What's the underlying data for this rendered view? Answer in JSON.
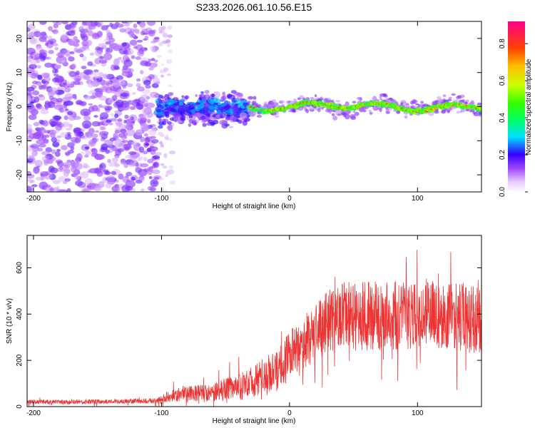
{
  "title": "S233.2026.061.10.56.E15",
  "chart_data": [
    {
      "type": "heatmap",
      "xlabel": "Height of straight line (km)",
      "ylabel": "Frequency (Hz)",
      "xlim": [
        -205,
        150
      ],
      "ylim": [
        -25,
        25
      ],
      "xticks": [
        -200,
        -100,
        0,
        100
      ],
      "yticks": [
        -20,
        -10,
        0,
        10,
        20
      ],
      "colorbar": {
        "label": "Normalized spectral amplitude",
        "range": [
          0,
          0.92
        ],
        "ticks": [
          "0.0",
          "0.2",
          "0.4",
          "0.6",
          "0.8"
        ],
        "tick_values": [
          0,
          0.2,
          0.4,
          0.6,
          0.8
        ]
      },
      "regions": [
        {
          "name": "noise",
          "x": [
            -205,
            -103
          ],
          "freq": [
            -25,
            25
          ],
          "amplitude": "0.05-0.15"
        },
        {
          "name": "scatter",
          "x": [
            -103,
            -32
          ],
          "freq": [
            -12,
            8
          ],
          "amplitude": "0.05-0.35"
        },
        {
          "name": "signal-ridge",
          "x": [
            -32,
            150
          ],
          "freq_center": 0,
          "amplitude": "0.25-0.9"
        }
      ]
    },
    {
      "type": "line",
      "xlabel": "Height of straight line (km)",
      "ylabel": "SNR (10 * v/v)",
      "xlim": [
        -205,
        150
      ],
      "ylim": [
        0,
        740
      ],
      "xticks": [
        -200,
        -100,
        0,
        100
      ],
      "yticks": [
        0,
        200,
        400,
        600
      ],
      "series": [
        {
          "name": "SNR",
          "color": "#ee3333",
          "envelope_x": [
            -205,
            -130,
            -103,
            -95,
            -80,
            -60,
            -50,
            -40,
            -30,
            -20,
            -10,
            0,
            10,
            20,
            30,
            40,
            60,
            80,
            100,
            120,
            140,
            150
          ],
          "envelope_mean": [
            20,
            22,
            25,
            45,
            55,
            60,
            75,
            85,
            105,
            130,
            160,
            220,
            260,
            320,
            360,
            390,
            390,
            395,
            390,
            400,
            380,
            360
          ],
          "envelope_spread": [
            10,
            10,
            12,
            25,
            35,
            40,
            50,
            60,
            70,
            80,
            90,
            110,
            120,
            130,
            140,
            150,
            150,
            150,
            150,
            150,
            150,
            150
          ]
        }
      ]
    }
  ]
}
